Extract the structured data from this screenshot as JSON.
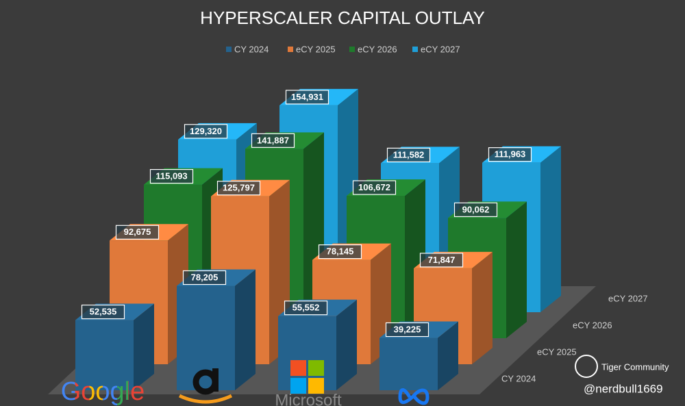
{
  "chart_data": {
    "type": "bar3d",
    "title": "HYPERSCALER CAPITAL OUTLAY",
    "categories": [
      "Google",
      null,
      "Microsoft",
      null
    ],
    "series": [
      {
        "name": "CY 2024",
        "color": "#24628d",
        "values": [
          52535,
          78205,
          55552,
          39225
        ],
        "value_labels": [
          "52,535",
          "78,205",
          "55,552",
          "39,225"
        ]
      },
      {
        "name": "eCY 2025",
        "color": "#e0793a",
        "values": [
          92675,
          125797,
          78145,
          71847
        ],
        "value_labels": [
          "92,675",
          "125,797",
          "78,145",
          "71,847"
        ]
      },
      {
        "name": "eCY 2026",
        "color": "#1f7a2c",
        "values": [
          115093,
          141887,
          106672,
          90062
        ],
        "value_labels": [
          "115,093",
          "141,887",
          "106,672",
          "90,062"
        ]
      },
      {
        "name": "eCY 2027",
        "color": "#1f9fd8",
        "values": [
          129320,
          154931,
          111582,
          111963
        ],
        "value_labels": [
          "129,320",
          "154,931",
          "111,582",
          "111,963"
        ]
      }
    ],
    "legend": "top"
  },
  "watermark": {
    "brand": "Tiger Community",
    "handle": "@nerdbull1669"
  }
}
